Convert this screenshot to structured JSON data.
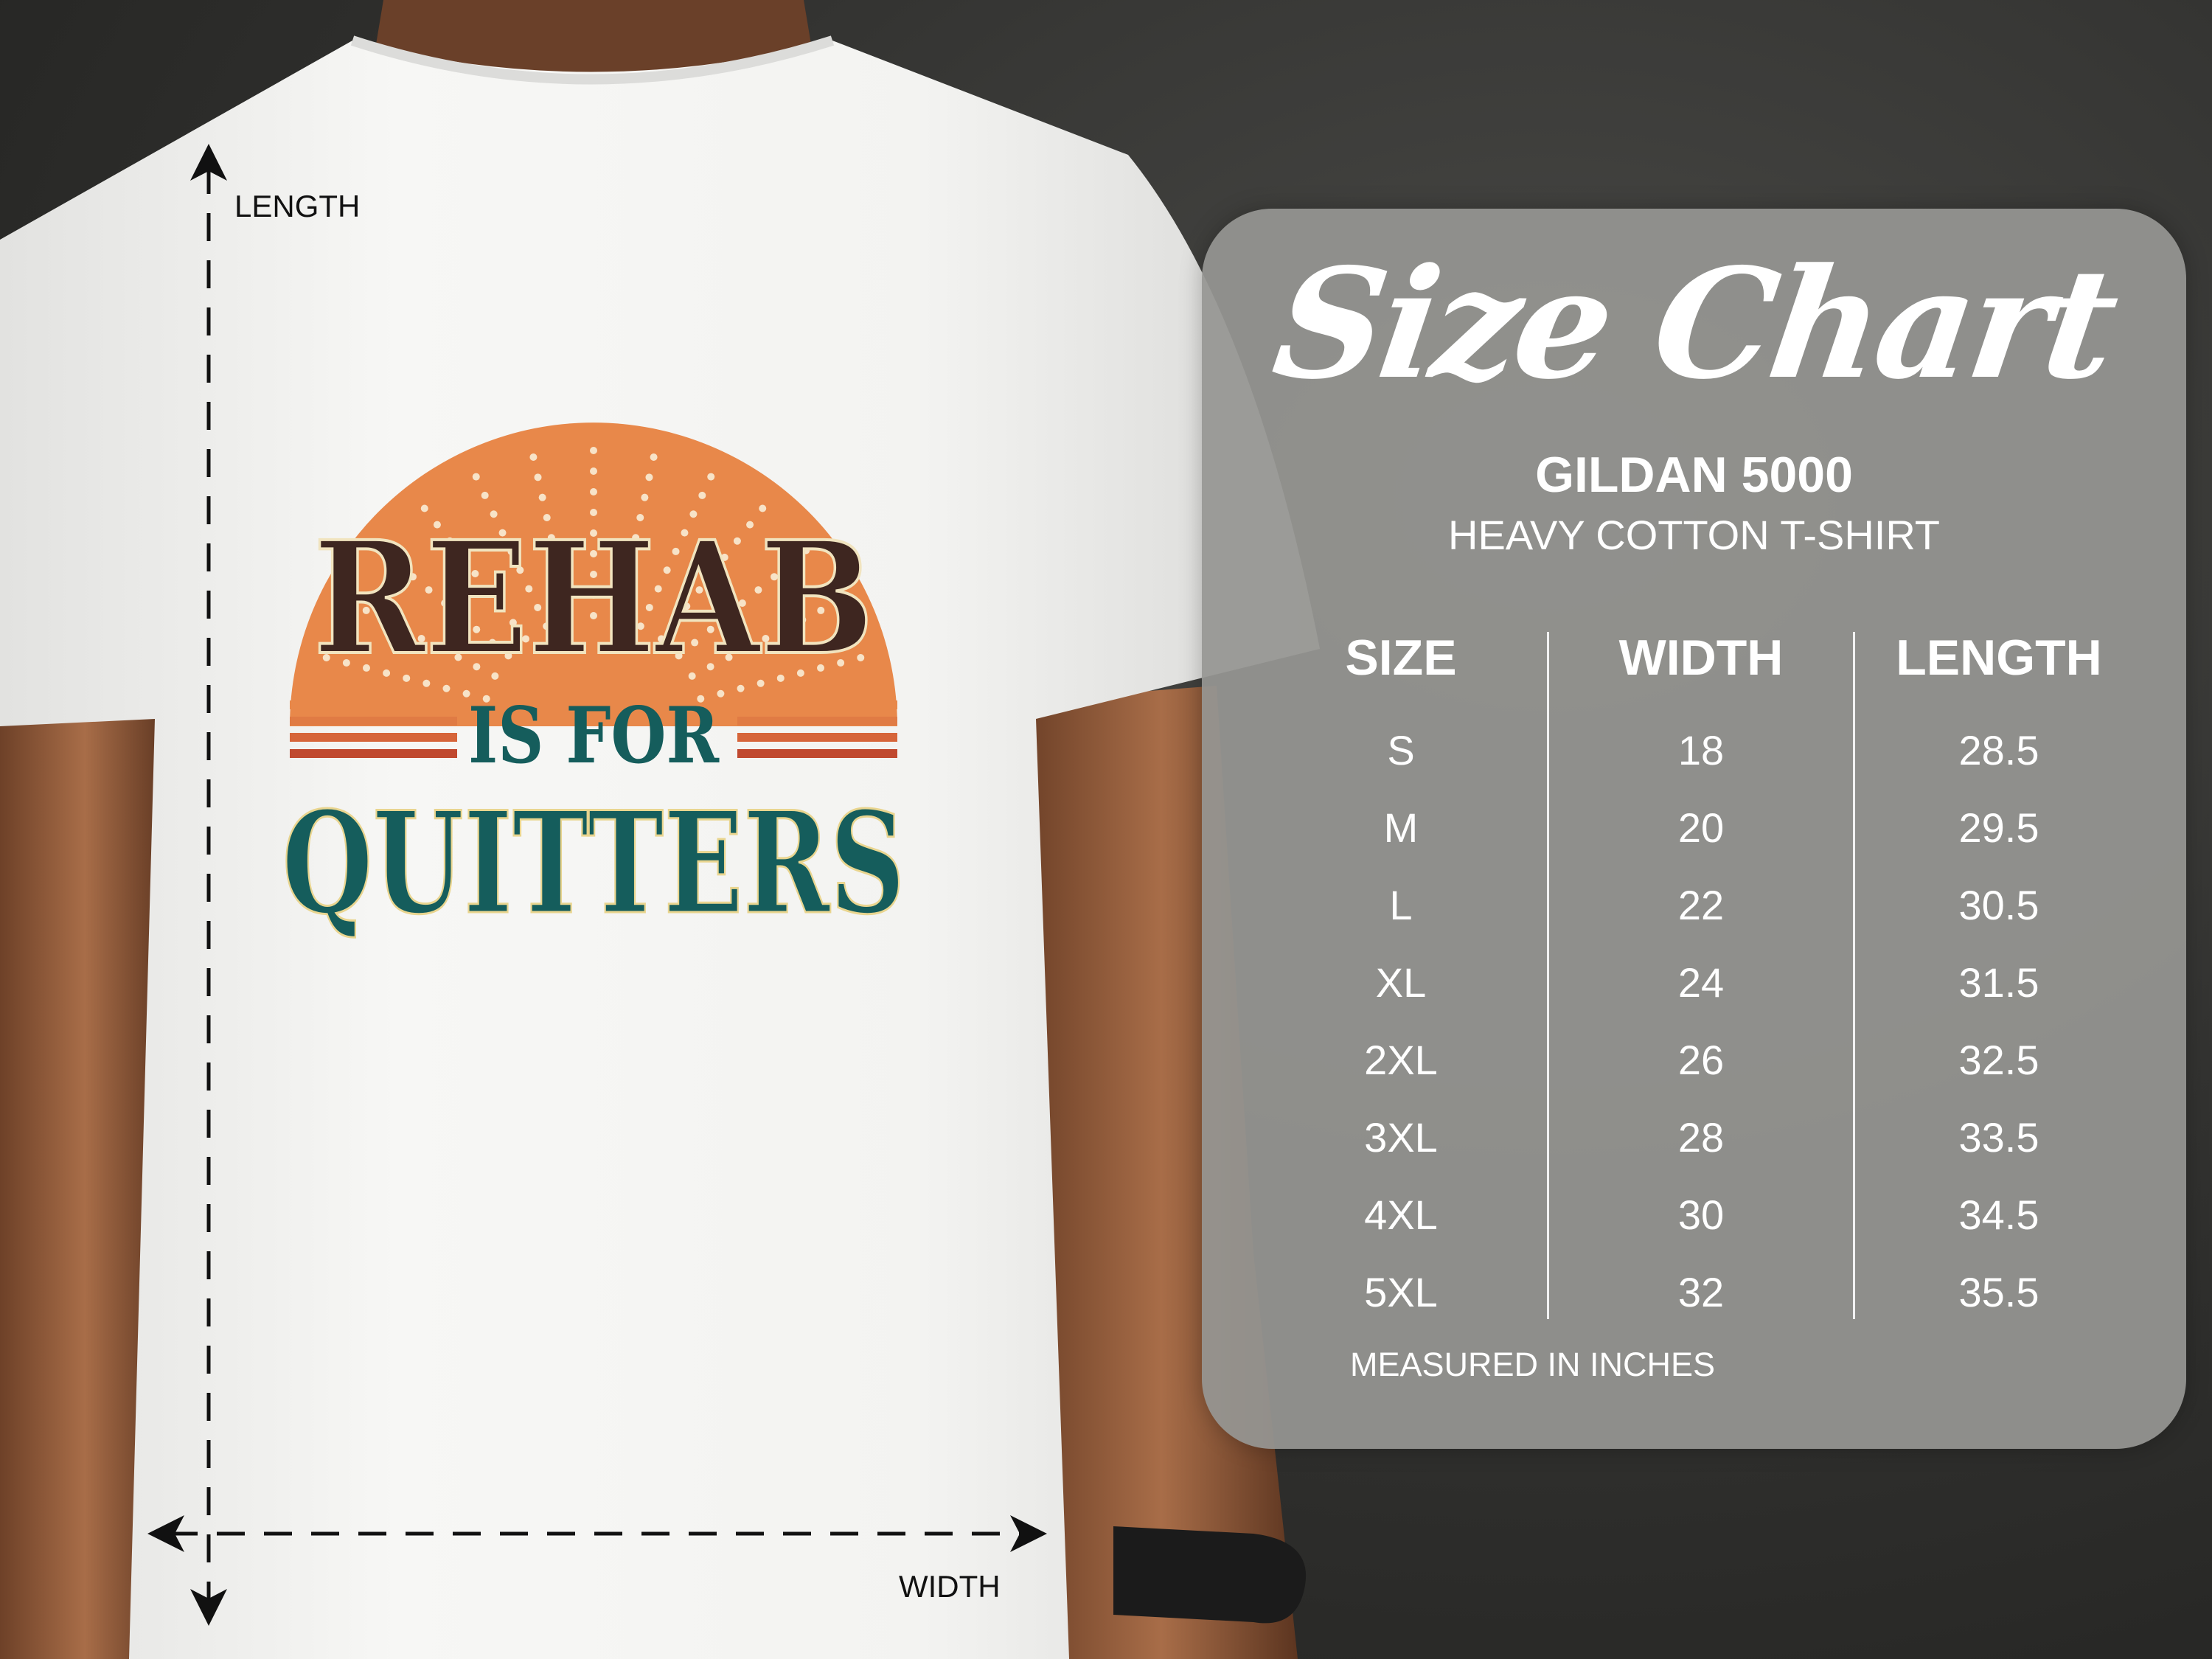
{
  "shirt": {
    "design": {
      "line1": "REHAB",
      "line2": "IS FOR",
      "line3": "QUITTERS"
    },
    "measure_labels": {
      "length": "LENGTH",
      "width": "WIDTH"
    },
    "colors": {
      "sun": "#e8884a",
      "brown": "#3e2620",
      "teal": "#155d5c",
      "stripe": "#c0492f",
      "shirt": "#f4f4f2"
    }
  },
  "size_chart": {
    "title": "Size Chart",
    "brand": "GILDAN 5000",
    "model": "HEAVY COTTON T-SHIRT",
    "headers": [
      "SIZE",
      "WIDTH",
      "LENGTH"
    ],
    "rows": [
      [
        "S",
        "18",
        "28.5"
      ],
      [
        "M",
        "20",
        "29.5"
      ],
      [
        "L",
        "22",
        "30.5"
      ],
      [
        "XL",
        "24",
        "31.5"
      ],
      [
        "2XL",
        "26",
        "32.5"
      ],
      [
        "3XL",
        "28",
        "33.5"
      ],
      [
        "4XL",
        "30",
        "34.5"
      ],
      [
        "5XL",
        "32",
        "35.5"
      ]
    ],
    "note": "MEASURED IN INCHES"
  }
}
